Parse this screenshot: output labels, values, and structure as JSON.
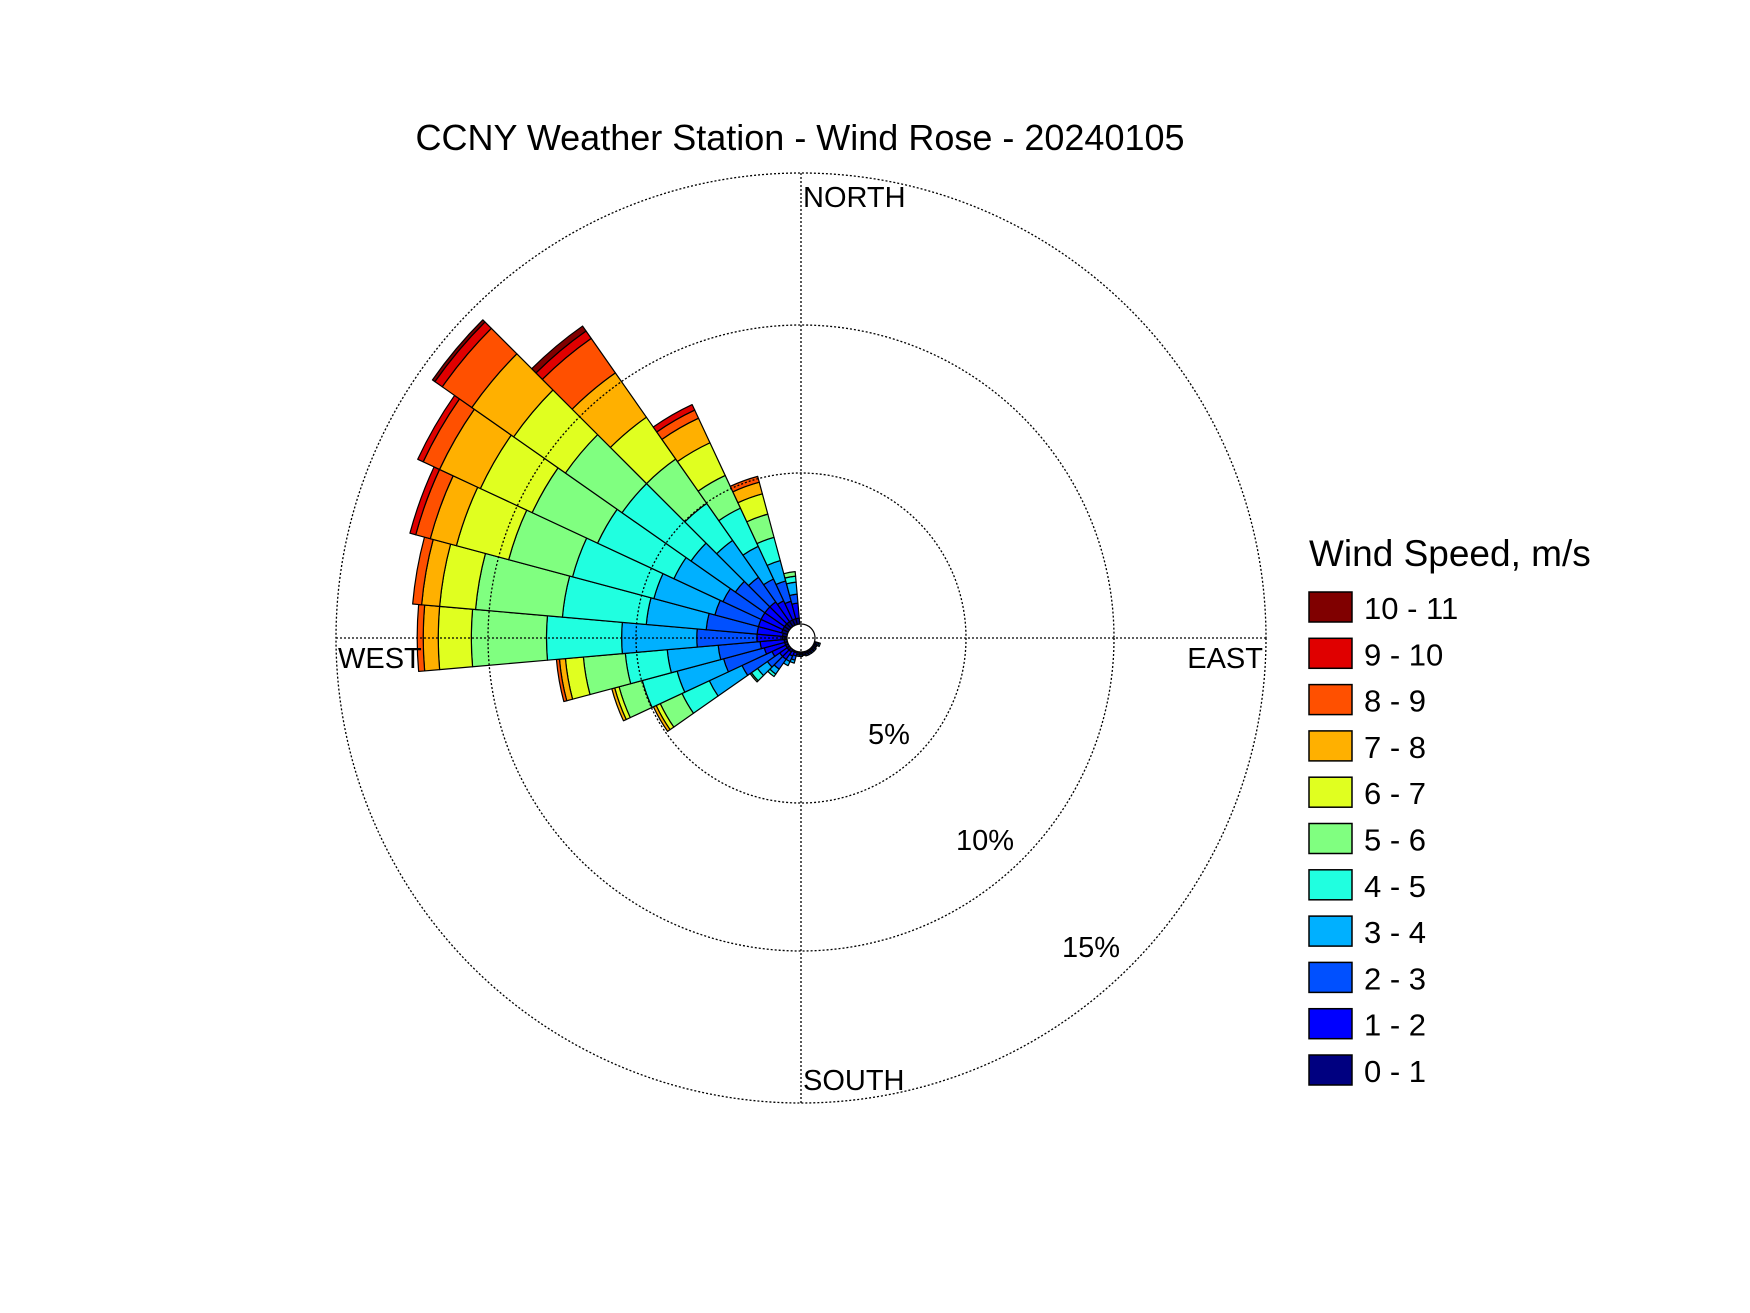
{
  "chart_data": {
    "type": "wind-rose",
    "title": "CCNY Weather Station - Wind Rose - 20240105",
    "directions": {
      "north": "NORTH",
      "south": "SOUTH",
      "east": "EAST",
      "west": "WEST"
    },
    "rings": [
      {
        "value": 5,
        "label": "5%"
      },
      {
        "value": 10,
        "label": "10%"
      },
      {
        "value": 15,
        "label": "15%"
      }
    ],
    "max_radius_percent": 15,
    "legend_title": "Wind Speed, m/s",
    "bins": [
      {
        "label": "0 - 1",
        "color": "#000080"
      },
      {
        "label": "1 - 2",
        "color": "#0000ff"
      },
      {
        "label": "2 - 3",
        "color": "#0050ff"
      },
      {
        "label": "3 - 4",
        "color": "#00b0ff"
      },
      {
        "label": "4 - 5",
        "color": "#20ffe0"
      },
      {
        "label": "5 - 6",
        "color": "#80ff80"
      },
      {
        "label": "6 - 7",
        "color": "#e0ff20"
      },
      {
        "label": "7 - 8",
        "color": "#ffb000"
      },
      {
        "label": "8 - 9",
        "color": "#ff5000"
      },
      {
        "label": "9 - 10",
        "color": "#e00000"
      },
      {
        "label": "10 - 11",
        "color": "#800000"
      }
    ],
    "sector_width_deg": 10,
    "sectors": [
      {
        "direction_deg": 110,
        "cumulative": [
          0.05,
          0.1,
          0.15,
          0.2
        ]
      },
      {
        "direction_deg": 120,
        "cumulative": [
          0.05,
          0.1,
          0.12
        ]
      },
      {
        "direction_deg": 130,
        "cumulative": [
          0.05,
          0.1,
          0.15
        ]
      },
      {
        "direction_deg": 140,
        "cumulative": [
          0.05,
          0.1,
          0.15
        ]
      },
      {
        "direction_deg": 150,
        "cumulative": [
          0.05,
          0.1,
          0.15
        ]
      },
      {
        "direction_deg": 160,
        "cumulative": [
          0.05,
          0.1,
          0.15
        ]
      },
      {
        "direction_deg": 170,
        "cumulative": [
          0.05,
          0.1,
          0.12
        ]
      },
      {
        "direction_deg": 180,
        "cumulative": [
          0.05,
          0.1,
          0.15
        ]
      },
      {
        "direction_deg": 190,
        "cumulative": [
          0.05,
          0.1,
          0.15
        ]
      },
      {
        "direction_deg": 200,
        "cumulative": [
          0.05,
          0.15,
          0.3,
          0.4
        ]
      },
      {
        "direction_deg": 210,
        "cumulative": [
          0.05,
          0.2,
          0.4,
          0.55
        ]
      },
      {
        "direction_deg": 220,
        "cumulative": [
          0.1,
          0.4,
          0.8,
          1.0,
          1.1
        ]
      },
      {
        "direction_deg": 230,
        "cumulative": [
          0.1,
          0.4,
          0.9,
          1.3,
          1.55,
          1.6
        ]
      },
      {
        "direction_deg": 240,
        "cumulative": [
          0.1,
          0.6,
          1.7,
          2.9,
          3.9,
          4.7,
          4.85,
          4.95
        ]
      },
      {
        "direction_deg": 250,
        "cumulative": [
          0.1,
          0.8,
          2.2,
          3.8,
          5.0,
          5.8,
          5.95,
          6.05
        ]
      },
      {
        "direction_deg": 260,
        "cumulative": [
          0.1,
          0.9,
          2.3,
          4.0,
          5.4,
          6.8,
          7.4,
          7.6,
          7.7
        ]
      },
      {
        "direction_deg": 270,
        "cumulative": [
          0.15,
          1.0,
          3.0,
          5.5,
          8.0,
          10.5,
          11.6,
          12.1,
          12.3
        ]
      },
      {
        "direction_deg": 280,
        "cumulative": [
          0.15,
          1.0,
          2.7,
          4.7,
          7.5,
          10.4,
          11.6,
          12.2,
          12.5
        ]
      },
      {
        "direction_deg": 290,
        "cumulative": [
          0.2,
          1.0,
          2.5,
          4.6,
          7.4,
          9.6,
          11.4,
          12.3,
          12.8,
          13.0
        ]
      },
      {
        "direction_deg": 300,
        "cumulative": [
          0.2,
          1.0,
          2.4,
          4.2,
          7.0,
          9.4,
          11.3,
          12.8,
          13.4,
          13.6
        ]
      },
      {
        "direction_deg": 310,
        "cumulative": [
          0.2,
          1.0,
          2.2,
          4.0,
          6.8,
          9.1,
          11.2,
          12.9,
          14.1,
          14.4,
          14.5
        ]
      },
      {
        "direction_deg": 320,
        "cumulative": [
          0.2,
          1.0,
          2.0,
          3.5,
          5.0,
          6.8,
          8.5,
          10.3,
          11.7,
          12.0,
          12.2
        ]
      },
      {
        "direction_deg": 330,
        "cumulative": [
          0.2,
          0.9,
          1.7,
          2.9,
          4.3,
          5.5,
          6.7,
          7.6,
          7.9,
          8.1
        ]
      },
      {
        "direction_deg": 340,
        "cumulative": [
          0.2,
          0.8,
          1.5,
          2.2,
          3.0,
          3.8,
          4.5,
          4.9,
          5.1
        ]
      },
      {
        "direction_deg": 350,
        "cumulative": [
          0.2,
          0.7,
          1.0,
          1.4,
          1.6,
          1.75
        ]
      }
    ]
  }
}
